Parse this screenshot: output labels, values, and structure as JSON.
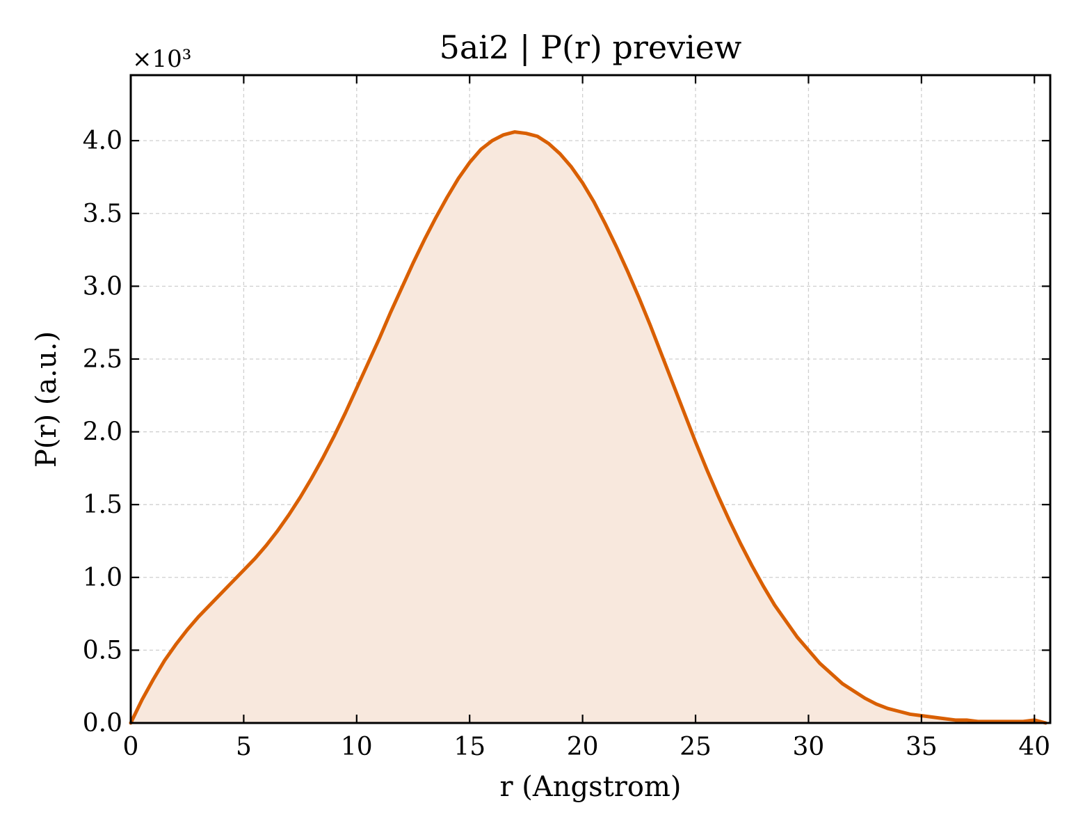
{
  "chart_data": {
    "type": "area",
    "title": "5ai2 | P(r) preview",
    "xlabel": "r (Angstrom)",
    "ylabel": "P(r) (a.u.)",
    "y_offset_label": "×10³",
    "xlim": [
      0,
      40.7
    ],
    "ylim": [
      0,
      4.45
    ],
    "xticks": [
      0,
      5,
      10,
      15,
      20,
      25,
      30,
      35,
      40
    ],
    "yticks": [
      0.0,
      0.5,
      1.0,
      1.5,
      2.0,
      2.5,
      3.0,
      3.5,
      4.0
    ],
    "xtick_labels": [
      "0",
      "5",
      "10",
      "15",
      "20",
      "25",
      "30",
      "35",
      "40"
    ],
    "ytick_labels": [
      "0.0",
      "0.5",
      "1.0",
      "1.5",
      "2.0",
      "2.5",
      "3.0",
      "3.5",
      "4.0"
    ],
    "grid": true,
    "line_color": "#d95f02",
    "fill_color": "#f8e8dd",
    "series": [
      {
        "x": [
          0,
          0.5,
          1,
          1.5,
          2,
          2.5,
          3,
          3.5,
          4,
          4.5,
          5,
          5.5,
          6,
          6.5,
          7,
          7.5,
          8,
          8.5,
          9,
          9.5,
          10,
          10.5,
          11,
          11.5,
          12,
          12.5,
          13,
          13.5,
          14,
          14.5,
          15,
          15.5,
          16,
          16.5,
          17,
          17.5,
          18,
          18.5,
          19,
          19.5,
          20,
          20.5,
          21,
          21.5,
          22,
          22.5,
          23,
          23.5,
          24,
          24.5,
          25,
          25.5,
          26,
          26.5,
          27,
          27.5,
          28,
          28.5,
          29,
          29.5,
          30,
          30.5,
          31,
          31.5,
          32,
          32.5,
          33,
          33.5,
          34,
          34.5,
          35,
          35.5,
          36,
          36.5,
          37,
          37.5,
          38,
          38.5,
          39,
          39.5,
          40,
          40.5
        ],
        "y": [
          0.0,
          0.16,
          0.3,
          0.43,
          0.54,
          0.64,
          0.73,
          0.81,
          0.89,
          0.97,
          1.05,
          1.13,
          1.22,
          1.32,
          1.43,
          1.55,
          1.68,
          1.82,
          1.97,
          2.13,
          2.3,
          2.47,
          2.64,
          2.82,
          2.99,
          3.16,
          3.32,
          3.47,
          3.61,
          3.74,
          3.85,
          3.94,
          4.0,
          4.04,
          4.06,
          4.05,
          4.03,
          3.98,
          3.91,
          3.82,
          3.71,
          3.58,
          3.43,
          3.27,
          3.1,
          2.92,
          2.73,
          2.53,
          2.33,
          2.13,
          1.93,
          1.74,
          1.56,
          1.39,
          1.23,
          1.08,
          0.94,
          0.81,
          0.7,
          0.59,
          0.5,
          0.41,
          0.34,
          0.27,
          0.22,
          0.17,
          0.13,
          0.1,
          0.08,
          0.06,
          0.05,
          0.04,
          0.03,
          0.02,
          0.02,
          0.01,
          0.01,
          0.01,
          0.01,
          0.01,
          0.02,
          0.0
        ]
      }
    ]
  }
}
